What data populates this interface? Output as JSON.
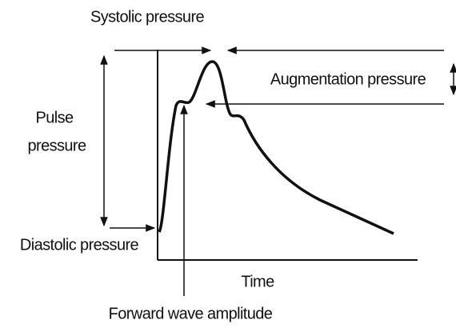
{
  "labels": {
    "systolic": "Systolic pressure",
    "augmentation": "Augmentation pressure",
    "pulse": [
      "Pulse",
      "pressure"
    ],
    "diastolic": "Diastolic pressure",
    "time": "Time",
    "forward_wave": "Forward wave amplitude"
  }
}
